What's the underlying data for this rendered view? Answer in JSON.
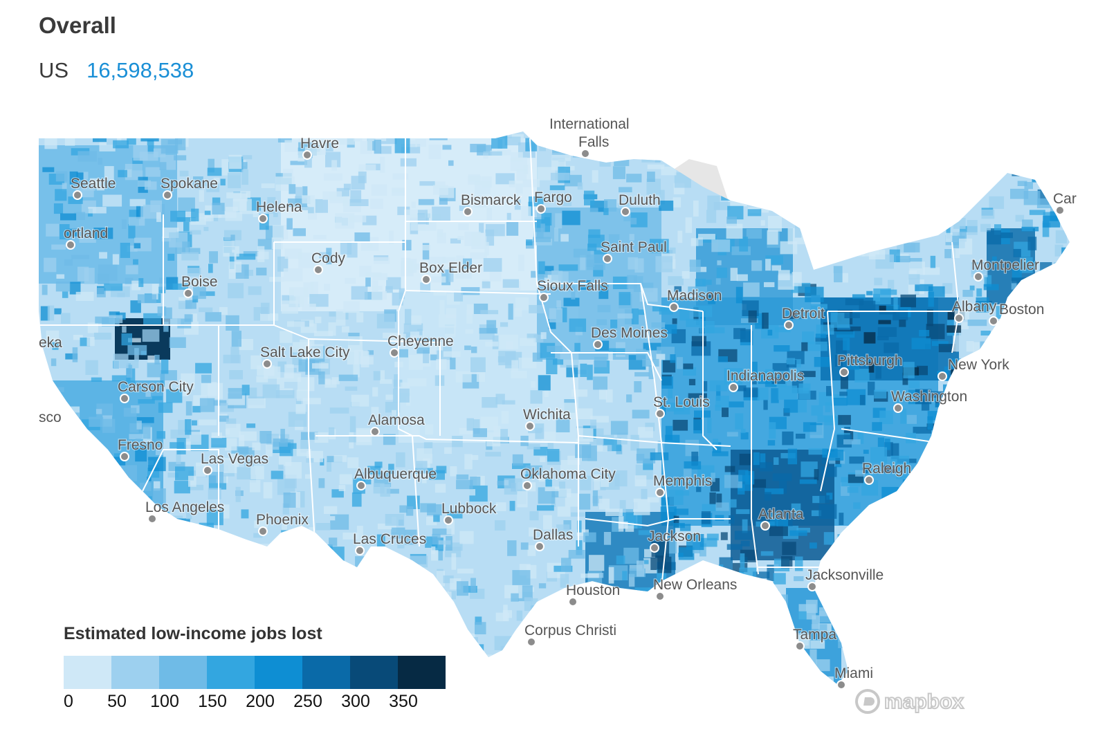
{
  "header": {
    "title": "Overall"
  },
  "summary": {
    "region": "US",
    "value": "16,598,538"
  },
  "legend": {
    "title": "Estimated low-income jobs lost",
    "ticks": [
      "0",
      "50",
      "100",
      "150",
      "200",
      "250",
      "300",
      "350"
    ],
    "colors": [
      "#cfe8f7",
      "#9dd0ef",
      "#6fbbe7",
      "#33a6e0",
      "#0e8ed3",
      "#0a6aa8",
      "#084a78",
      "#062a44"
    ]
  },
  "colors": {
    "accent": "#1a8fd6",
    "land_light": "#cfe8f7",
    "lakes": "#e8e8e8",
    "borders": "#ffffff"
  },
  "map": {
    "cities": [
      {
        "name": "International",
        "type": "label"
      },
      {
        "name": "Falls",
        "type": "city"
      },
      {
        "name": "Havre",
        "type": "city"
      },
      {
        "name": "Seattle",
        "type": "city"
      },
      {
        "name": "Spokane",
        "type": "city"
      },
      {
        "name": "Helena",
        "type": "city"
      },
      {
        "name": "ortland",
        "type": "city"
      },
      {
        "name": "Bismarck",
        "type": "city"
      },
      {
        "name": "Fargo",
        "type": "city"
      },
      {
        "name": "Duluth",
        "type": "city"
      },
      {
        "name": "Caribo",
        "type": "city"
      },
      {
        "name": "Saint Paul",
        "type": "city"
      },
      {
        "name": "Cody",
        "type": "city"
      },
      {
        "name": "Box Elder",
        "type": "city"
      },
      {
        "name": "Boise",
        "type": "city"
      },
      {
        "name": "Sioux Falls",
        "type": "city"
      },
      {
        "name": "Madison",
        "type": "city"
      },
      {
        "name": "Montpelier",
        "type": "city"
      },
      {
        "name": "Albany",
        "type": "city"
      },
      {
        "name": "Boston",
        "type": "city"
      },
      {
        "name": "Detroit",
        "type": "city"
      },
      {
        "name": "Des Moines",
        "type": "city"
      },
      {
        "name": "eka",
        "type": "city"
      },
      {
        "name": "Salt Lake City",
        "type": "city"
      },
      {
        "name": "Cheyenne",
        "type": "city"
      },
      {
        "name": "Pittsburgh",
        "type": "city"
      },
      {
        "name": "New York",
        "type": "city"
      },
      {
        "name": "Indianapolis",
        "type": "city"
      },
      {
        "name": "Carson City",
        "type": "city"
      },
      {
        "name": "St. Louis",
        "type": "city"
      },
      {
        "name": "sco",
        "type": "city"
      },
      {
        "name": "Wichita",
        "type": "city"
      },
      {
        "name": "Washington",
        "type": "city"
      },
      {
        "name": "Alamosa",
        "type": "city"
      },
      {
        "name": "Fresno",
        "type": "city"
      },
      {
        "name": "Las Vegas",
        "type": "city"
      },
      {
        "name": "Oklahoma City",
        "type": "city"
      },
      {
        "name": "Raleigh",
        "type": "city"
      },
      {
        "name": "Albuquerque",
        "type": "city"
      },
      {
        "name": "Memphis",
        "type": "city"
      },
      {
        "name": "Los Angeles",
        "type": "city"
      },
      {
        "name": "Phoenix",
        "type": "city"
      },
      {
        "name": "Lubbock",
        "type": "city"
      },
      {
        "name": "Atlanta",
        "type": "city"
      },
      {
        "name": "Dallas",
        "type": "city"
      },
      {
        "name": "Jackson",
        "type": "city"
      },
      {
        "name": "Las Cruces",
        "type": "city"
      },
      {
        "name": "Jacksonville",
        "type": "city"
      },
      {
        "name": "New Orleans",
        "type": "city"
      },
      {
        "name": "Houston",
        "type": "city"
      },
      {
        "name": "Corpus Christi",
        "type": "city"
      },
      {
        "name": "Tampa",
        "type": "city"
      },
      {
        "name": "Miami",
        "type": "city"
      }
    ]
  },
  "attribution": {
    "logo_text": "mapbox"
  }
}
